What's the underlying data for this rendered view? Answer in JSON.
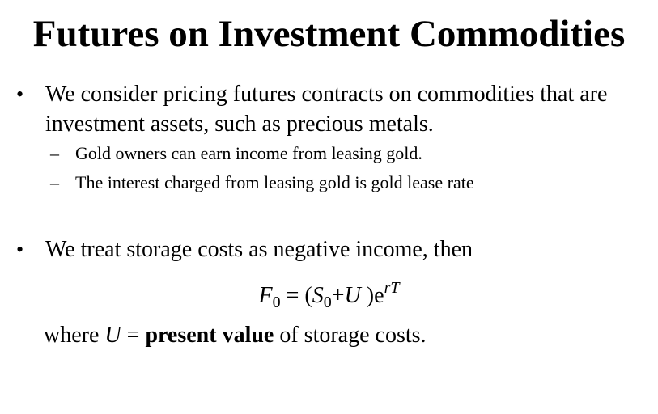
{
  "slide": {
    "title": "Futures on Investment Commodities",
    "bullets": [
      {
        "text": "We consider pricing futures contracts on commodities that are investment assets, such as precious metals.",
        "subitems": [
          "Gold owners can earn income from leasing gold.",
          "The interest charged from leasing gold is gold lease rate"
        ]
      },
      {
        "text": "We treat storage costs as negative income, then"
      }
    ],
    "formula": {
      "lhs_var": "F",
      "lhs_sub": "0",
      "equals": " = (",
      "s_var": "S",
      "s_sub": "0",
      "plus": "+",
      "u_var": "U",
      "close": " )e",
      "exponent": "rT"
    },
    "where": {
      "prefix": "where ",
      "var": "U",
      "equals": " = ",
      "emphasis": "present value",
      "suffix": " of storage costs."
    },
    "bullet_symbol": "•",
    "dash_symbol": "–"
  }
}
